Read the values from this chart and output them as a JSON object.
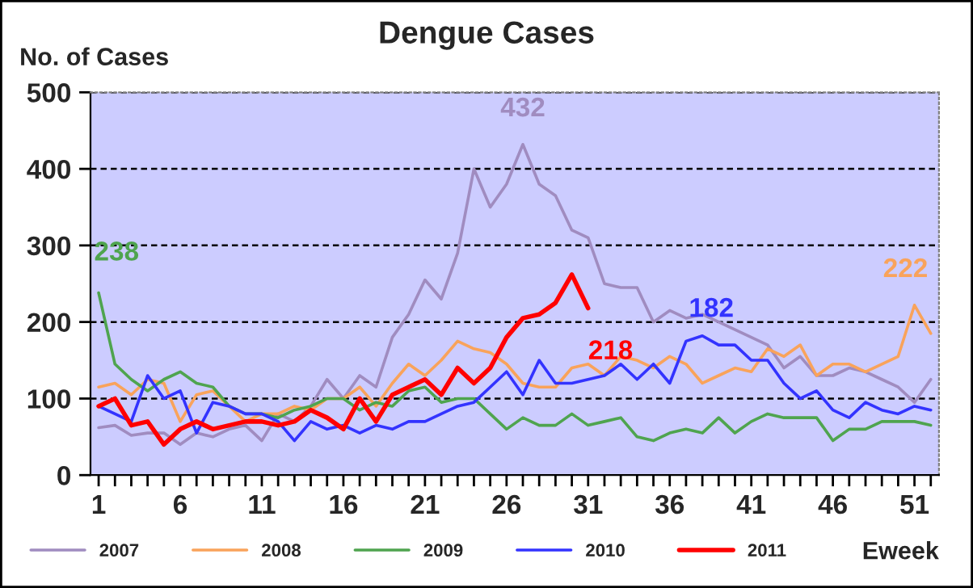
{
  "chart_data": {
    "type": "line",
    "title": "Dengue Cases",
    "ylabel": "No. of Cases",
    "xlabel": "Eweek",
    "x": [
      1,
      2,
      3,
      4,
      5,
      6,
      7,
      8,
      9,
      10,
      11,
      12,
      13,
      14,
      15,
      16,
      17,
      18,
      19,
      20,
      21,
      22,
      23,
      24,
      25,
      26,
      27,
      28,
      29,
      30,
      31,
      32,
      33,
      34,
      35,
      36,
      37,
      38,
      39,
      40,
      41,
      42,
      43,
      44,
      45,
      46,
      47,
      48,
      49,
      50,
      51,
      52
    ],
    "series": [
      {
        "name": "2007",
        "color": "#a08cc0",
        "values": [
          62,
          65,
          52,
          55,
          55,
          40,
          55,
          50,
          60,
          65,
          45,
          80,
          70,
          90,
          125,
          100,
          130,
          115,
          180,
          210,
          255,
          230,
          290,
          400,
          350,
          380,
          432,
          380,
          365,
          320,
          310,
          250,
          245,
          245,
          200,
          215,
          205,
          210,
          200,
          190,
          180,
          170,
          140,
          155,
          130,
          130,
          140,
          135,
          125,
          115,
          95,
          125
        ]
      },
      {
        "name": "2008",
        "color": "#f9a35b",
        "values": [
          115,
          120,
          105,
          125,
          120,
          70,
          105,
          110,
          90,
          70,
          80,
          80,
          90,
          85,
          100,
          100,
          115,
          90,
          120,
          145,
          130,
          150,
          175,
          165,
          160,
          145,
          120,
          115,
          115,
          140,
          145,
          130,
          155,
          150,
          140,
          155,
          145,
          120,
          130,
          140,
          135,
          165,
          155,
          170,
          130,
          145,
          145,
          135,
          145,
          155,
          222,
          185
        ]
      },
      {
        "name": "2009",
        "color": "#4fa44f",
        "values": [
          238,
          145,
          125,
          110,
          125,
          135,
          120,
          115,
          90,
          80,
          80,
          75,
          85,
          90,
          100,
          100,
          85,
          95,
          90,
          110,
          115,
          95,
          100,
          100,
          80,
          60,
          75,
          65,
          65,
          80,
          65,
          70,
          75,
          50,
          45,
          55,
          60,
          55,
          75,
          55,
          70,
          80,
          75,
          75,
          75,
          45,
          60,
          60,
          70,
          70,
          70,
          65
        ]
      },
      {
        "name": "2010",
        "color": "#3333ff",
        "values": [
          90,
          80,
          70,
          130,
          100,
          110,
          55,
          95,
          90,
          80,
          80,
          70,
          45,
          70,
          60,
          65,
          55,
          65,
          60,
          70,
          70,
          80,
          90,
          95,
          115,
          135,
          105,
          150,
          120,
          120,
          125,
          130,
          145,
          125,
          145,
          120,
          175,
          182,
          170,
          170,
          150,
          150,
          120,
          100,
          110,
          85,
          75,
          95,
          85,
          80,
          90,
          85
        ]
      },
      {
        "name": "2011",
        "color": "#ff0000",
        "values": [
          90,
          100,
          65,
          70,
          40,
          60,
          70,
          60,
          65,
          70,
          70,
          65,
          70,
          85,
          75,
          60,
          100,
          70,
          105,
          115,
          125,
          105,
          140,
          120,
          140,
          180,
          205,
          210,
          225,
          262,
          218,
          null,
          null,
          null,
          null,
          null,
          null,
          null,
          null,
          null,
          null,
          null,
          null,
          null,
          null,
          null,
          null,
          null,
          null,
          null,
          null,
          null
        ]
      }
    ],
    "annotations": [
      {
        "text": "238",
        "x": 1,
        "y": 238
      },
      {
        "text": "432",
        "x": 27,
        "y": 432
      },
      {
        "text": "218",
        "x": 31,
        "y": 218
      },
      {
        "text": "182",
        "x": 38,
        "y": 182
      },
      {
        "text": "222",
        "x": 51,
        "y": 222
      }
    ],
    "xlim": [
      0.5,
      52.5
    ],
    "xticks": [
      1,
      {
        "value": 2,
        "label": null
      },
      {
        "value": 3,
        "label": null
      },
      {
        "value": 4,
        "label": null
      },
      {
        "value": 5,
        "label": null
      },
      6,
      {
        "value": 7,
        "label": null
      },
      {
        "value": 8,
        "label": null
      },
      {
        "value": 9,
        "label": null
      },
      {
        "value": 10,
        "label": null
      },
      11,
      {
        "value": 12,
        "label": null
      },
      {
        "value": 13,
        "label": null
      },
      {
        "value": 14,
        "label": null
      },
      {
        "value": 15,
        "label": null
      },
      16,
      {
        "value": 17,
        "label": null
      },
      {
        "value": 18,
        "label": null
      },
      {
        "value": 19,
        "label": null
      },
      {
        "value": 20,
        "label": null
      },
      21,
      {
        "value": 22,
        "label": null
      },
      {
        "value": 23,
        "label": null
      },
      {
        "value": 24,
        "label": null
      },
      {
        "value": 25,
        "label": null
      },
      26,
      {
        "value": 27,
        "label": null
      },
      {
        "value": 28,
        "label": null
      },
      {
        "value": 29,
        "label": null
      },
      {
        "value": 30,
        "label": null
      },
      31,
      {
        "value": 32,
        "label": null
      },
      {
        "value": 33,
        "label": null
      },
      {
        "value": 34,
        "label": null
      },
      {
        "value": 35,
        "label": null
      },
      36,
      {
        "value": 37,
        "label": null
      },
      {
        "value": 38,
        "label": null
      },
      {
        "value": 39,
        "label": null
      },
      {
        "value": 40,
        "label": null
      },
      41,
      {
        "value": 42,
        "label": null
      },
      {
        "value": 43,
        "label": null
      },
      {
        "value": 44,
        "label": null
      },
      {
        "value": 45,
        "label": null
      },
      46,
      {
        "value": 47,
        "label": null
      },
      {
        "value": 48,
        "label": null
      },
      {
        "value": 49,
        "label": null
      },
      {
        "value": 50,
        "label": null
      },
      51,
      {
        "value": 52,
        "label": null
      }
    ],
    "ylim": [
      0,
      500
    ],
    "yticks": [
      0,
      100,
      200,
      300,
      400,
      500
    ],
    "grid": "y",
    "legend": "bottom",
    "marker": "none",
    "line_style": "solid"
  }
}
